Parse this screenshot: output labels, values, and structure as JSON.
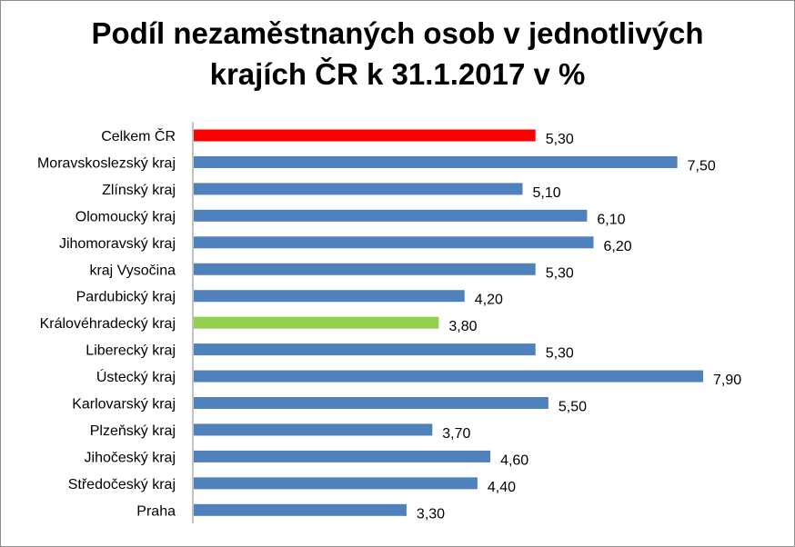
{
  "chart_data": {
    "type": "bar",
    "orientation": "horizontal",
    "title_lines": [
      "Podíl nezaměstnaných osob v jednotlivých",
      "krajích ČR k 31.1.2017 v %"
    ],
    "categories": [
      "Celkem ČR",
      "Moravskoslezský kraj",
      "Zlínský kraj",
      "Olomoucký kraj",
      "Jihomoravský kraj",
      "kraj Vysočina",
      "Pardubický kraj",
      "Královéhradecký kraj",
      "Liberecký kraj",
      "Ústecký kraj",
      "Karlovarský kraj",
      "Plzeňský kraj",
      "Jihočeský kraj",
      "Středočeský kraj",
      "Praha"
    ],
    "values": [
      5.3,
      7.5,
      5.1,
      6.1,
      6.2,
      5.3,
      4.2,
      3.8,
      5.3,
      7.9,
      5.5,
      3.7,
      4.6,
      4.4,
      3.3
    ],
    "value_labels": [
      "5,30",
      "7,50",
      "5,10",
      "6,10",
      "6,20",
      "5,30",
      "4,20",
      "3,80",
      "5,30",
      "7,90",
      "5,50",
      "3,70",
      "4,60",
      "4,40",
      "3,30"
    ],
    "colors": {
      "default": "#4f81bd",
      "highlight_total": "#ff0000",
      "highlight_region": "#92d050"
    },
    "bar_colors": [
      "#ff0000",
      "#4f81bd",
      "#4f81bd",
      "#4f81bd",
      "#4f81bd",
      "#4f81bd",
      "#4f81bd",
      "#92d050",
      "#4f81bd",
      "#4f81bd",
      "#4f81bd",
      "#4f81bd",
      "#4f81bd",
      "#4f81bd",
      "#4f81bd"
    ],
    "xlim": [
      0,
      7.9
    ],
    "grid": false,
    "legend": "none",
    "x_axis_visible": false
  }
}
